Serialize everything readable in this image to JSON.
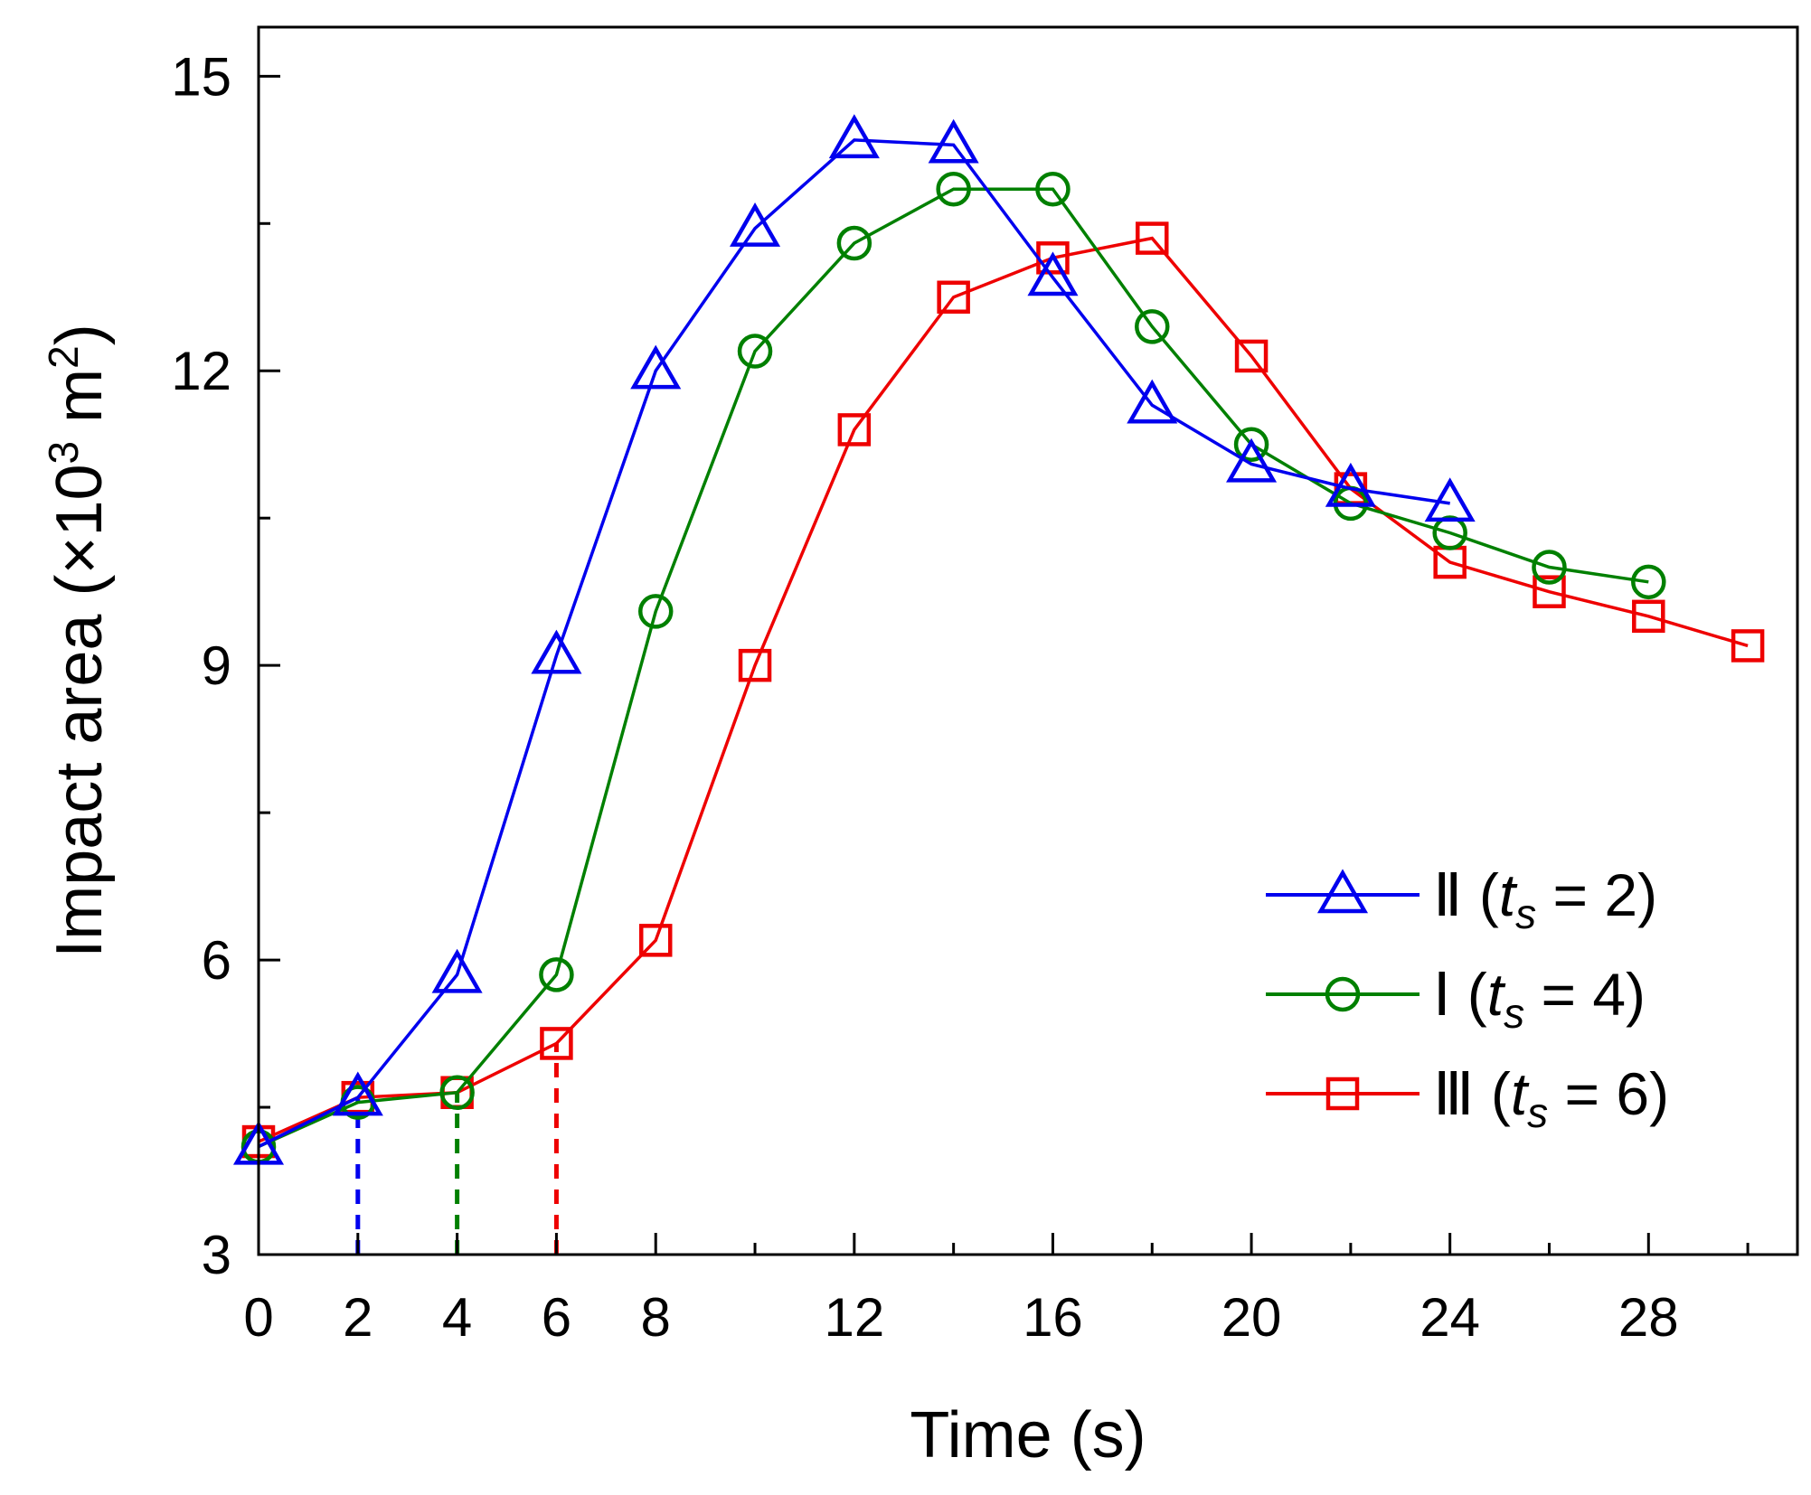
{
  "chart_data": {
    "type": "line",
    "title": "",
    "xlabel": "Time (s)",
    "ylabel": {
      "prefix": "Impact area (×10",
      "sup1": "3",
      "middle": " m",
      "sup2": "2",
      "suffix": ")"
    },
    "xlim": [
      0,
      31
    ],
    "ylim": [
      3,
      15.5
    ],
    "xticks": [
      0,
      2,
      4,
      6,
      8,
      12,
      16,
      20,
      24,
      28
    ],
    "xtick_labels": [
      "0",
      "2",
      "4",
      "6",
      "8",
      "12",
      "16",
      "20",
      "24",
      "28"
    ],
    "xtick_colors": [
      "#000000",
      "#0000ee",
      "#000000",
      "#ee0000",
      "#000000",
      "#000000",
      "#000000",
      "#000000",
      "#000000",
      "#000000"
    ],
    "xticks_minor": [
      10,
      14,
      18,
      22,
      26,
      30
    ],
    "yticks": [
      3,
      6,
      9,
      12,
      15
    ],
    "ytick_labels": [
      "3",
      "6",
      "9",
      "12",
      "15"
    ],
    "yticks_minor": [
      4.5,
      7.5,
      10.5,
      13.5
    ],
    "legend_position": "bottom-right",
    "series": [
      {
        "name": "Ⅱ",
        "legend_var": "t",
        "legend_sub": "s",
        "legend_value": " = 2)",
        "color": "#0000ee",
        "marker": "triangle",
        "x": [
          0,
          2,
          4,
          6,
          8,
          10,
          12,
          14,
          16,
          18,
          20,
          22,
          24
        ],
        "y": [
          4.1,
          4.6,
          5.85,
          9.1,
          12.0,
          13.45,
          14.35,
          14.3,
          12.95,
          11.65,
          11.05,
          10.8,
          10.65
        ]
      },
      {
        "name": "Ⅰ",
        "legend_var": "t",
        "legend_sub": "s",
        "legend_value": " = 4)",
        "color": "#008000",
        "marker": "circle",
        "x": [
          0,
          2,
          4,
          6,
          8,
          10,
          12,
          14,
          16,
          18,
          20,
          22,
          24,
          26,
          28
        ],
        "y": [
          4.1,
          4.55,
          4.65,
          5.85,
          9.55,
          12.2,
          13.3,
          13.85,
          13.85,
          12.45,
          11.25,
          10.65,
          10.35,
          10.0,
          9.85
        ]
      },
      {
        "name": "Ⅲ",
        "legend_var": "t",
        "legend_sub": "s",
        "legend_value": " = 6)",
        "color": "#ee0000",
        "marker": "square",
        "x": [
          0,
          2,
          4,
          6,
          8,
          10,
          12,
          14,
          16,
          18,
          20,
          22,
          24,
          26,
          28,
          30
        ],
        "y": [
          4.15,
          4.6,
          4.65,
          5.15,
          6.2,
          9.0,
          11.4,
          12.75,
          13.15,
          13.35,
          12.15,
          10.8,
          10.05,
          9.75,
          9.5,
          9.2
        ]
      }
    ],
    "drop_lines": [
      {
        "x": 2,
        "color": "#0000ee"
      },
      {
        "x": 4,
        "color": "#008000"
      },
      {
        "x": 6,
        "color": "#ee0000"
      }
    ]
  }
}
